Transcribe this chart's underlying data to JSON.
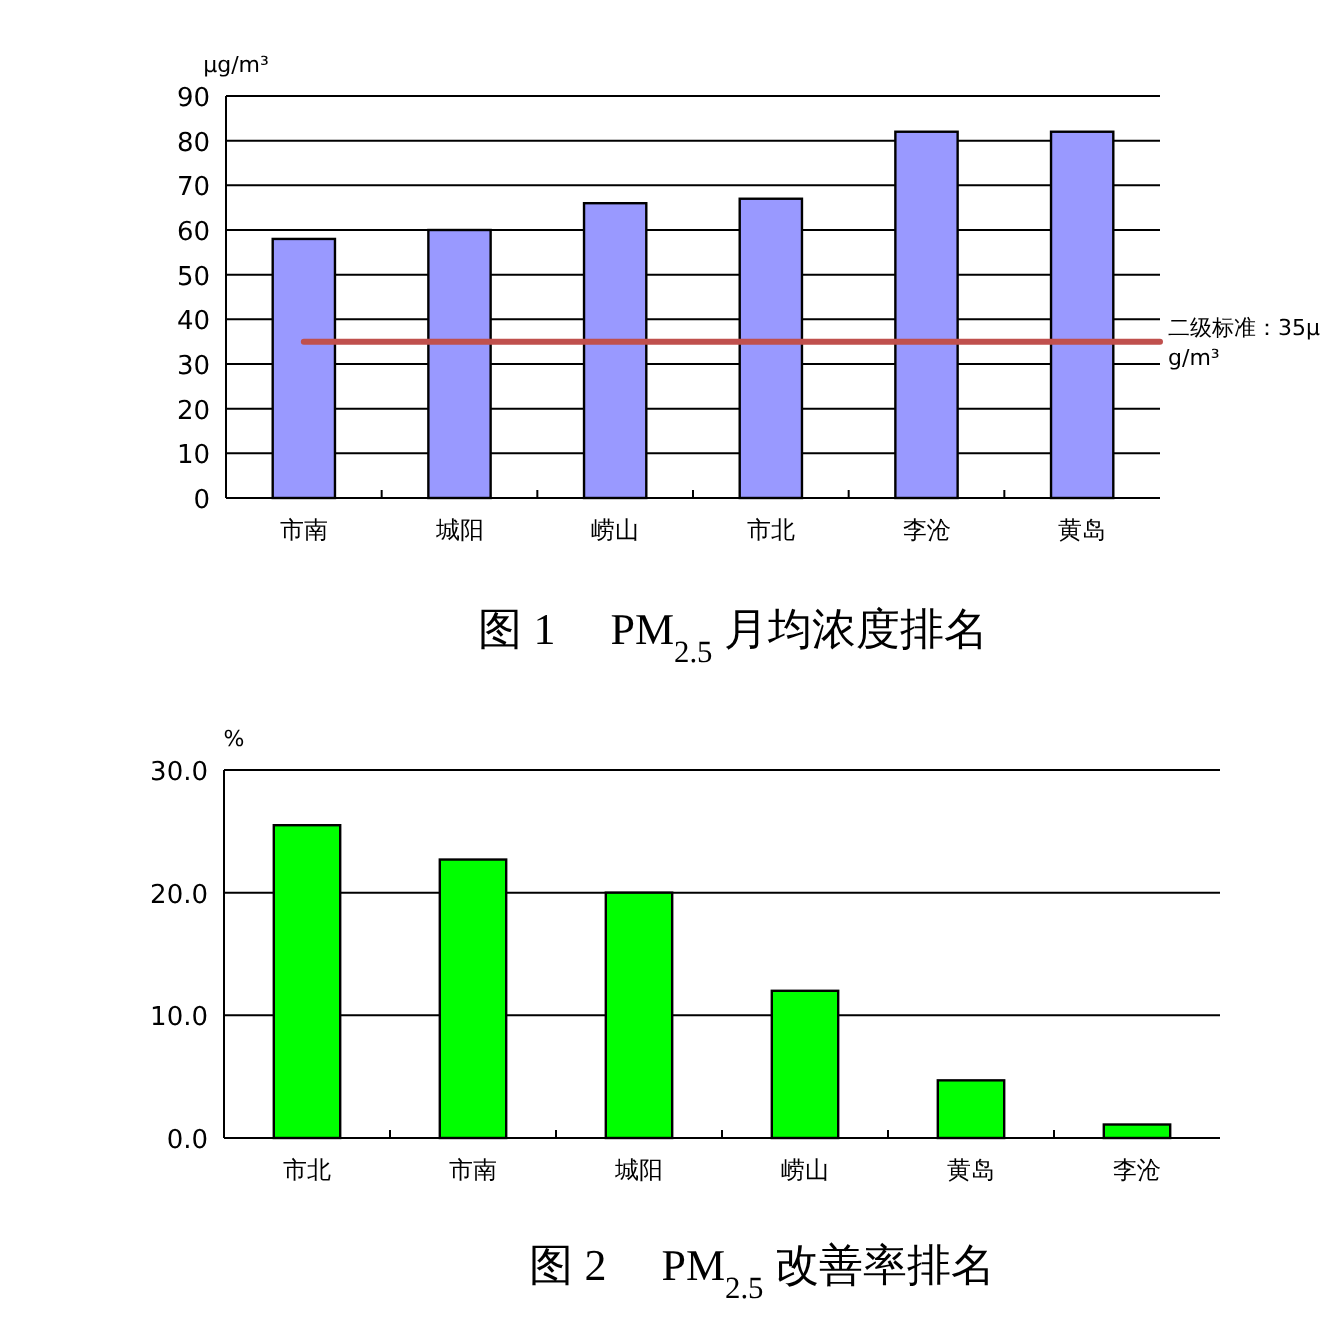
{
  "chart_data": [
    {
      "type": "bar",
      "title": "图 1　 PM$_{2.5}$ 月均浓度排名",
      "ylabel": "μg/m³",
      "categories": [
        "市南",
        "城阳",
        "崂山",
        "市北",
        "李沧",
        "黄岛"
      ],
      "series": [
        {
          "color": "#9999ff",
          "values": [
            58,
            60,
            66,
            67,
            82,
            82
          ]
        }
      ],
      "ylim": [
        0,
        90
      ],
      "yticks": [
        0,
        10,
        20,
        30,
        40,
        50,
        60,
        70,
        80,
        90
      ],
      "grid": "y",
      "ref_lines": [
        {
          "axis": "y",
          "value": 35,
          "label": "二级标准：35μg/m³",
          "color": "#c0504d"
        }
      ]
    },
    {
      "type": "bar",
      "title": "图 2　 PM$_{2.5}$ 改善率排名",
      "ylabel": "%",
      "categories": [
        "市北",
        "市南",
        "城阳",
        "崂山",
        "黄岛",
        "李沧"
      ],
      "series": [
        {
          "color": "#00ff00",
          "values": [
            25.5,
            22.7,
            20.0,
            12.0,
            4.7,
            1.1
          ]
        }
      ],
      "ylim": [
        0,
        30
      ],
      "yticks": [
        {
          "value": 0,
          "label": "0.0"
        },
        {
          "value": 10,
          "label": "10.0"
        },
        {
          "value": 20,
          "label": "20.0"
        },
        {
          "value": 30,
          "label": "30.0"
        }
      ],
      "grid": "y"
    }
  ]
}
